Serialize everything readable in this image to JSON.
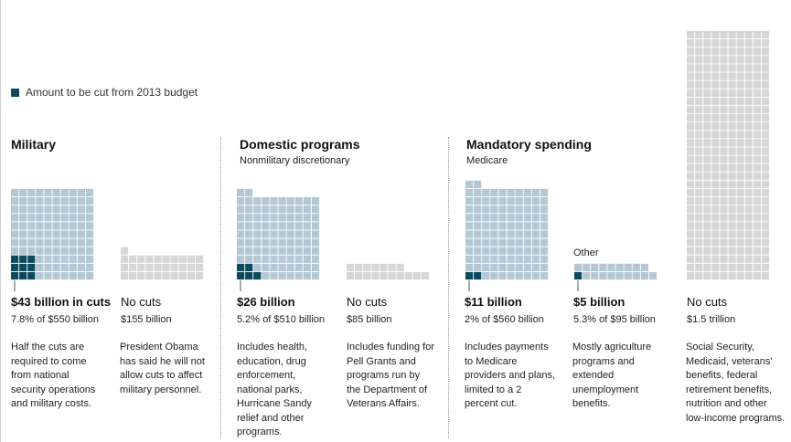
{
  "legend": {
    "label": "Amount to be cut from 2013 budget",
    "swatch_color": "#0d4a5e"
  },
  "colors": {
    "cut": "#0d4a5e",
    "budget": "#b4c8d4",
    "no_cut": "#d6d6d6",
    "cell_border": "#ffffff"
  },
  "sections": {
    "military": {
      "title": "Military"
    },
    "domestic": {
      "title": "Domestic programs",
      "subtitle": "Nonmilitary discretionary"
    },
    "mandatory": {
      "title": "Mandatory spending",
      "subtitle": "Medicare"
    }
  },
  "items": {
    "military_cut": {
      "amount": "$43 billion in cuts",
      "pct": "7.8% of $550 billion",
      "desc": [
        "Half the cuts are",
        "required to come",
        "from national",
        "security operations",
        "and military costs."
      ]
    },
    "military_nocut": {
      "amount": "No cuts",
      "pct": "$155 billion",
      "desc": [
        "President Obama",
        "has said he will not",
        "allow cuts to affect",
        "military personnel."
      ]
    },
    "domestic_cut": {
      "amount": "$26 billion",
      "pct": "5.2% of $510 billion",
      "desc": [
        "Includes health,",
        "education, drug",
        "enforcement,",
        "national parks,",
        "Hurricane Sandy",
        "relief and other",
        "programs."
      ]
    },
    "domestic_nocut": {
      "amount": "No cuts",
      "pct": "$85 billion",
      "desc": [
        "Includes funding for",
        "Pell Grants and",
        "programs run by",
        "the Department of",
        "Veterans Affairs."
      ]
    },
    "medicare": {
      "amount": "$11 billion",
      "pct": "2% of $560 billion",
      "desc": [
        "Includes payments",
        "to Medicare",
        "providers and plans,",
        "limited to a 2",
        "percent cut."
      ]
    },
    "other": {
      "label": "Other",
      "amount": "$5 billion",
      "pct": "5.3% of $95 billion",
      "desc": [
        "Mostly agriculture",
        "programs and",
        "extended",
        "unemployment",
        "benefits."
      ]
    },
    "social": {
      "amount": "No cuts",
      "pct": "$1.5 trillion",
      "desc": [
        "Social Security,",
        "Medicaid, veterans'",
        "benefits, federal",
        "retirement benefits,",
        "nutrition and other",
        "low-income programs."
      ]
    }
  },
  "chart_data": {
    "type": "waffle",
    "unit_billion_per_square": 5,
    "legend": "Amount to be cut from 2013 budget",
    "groups": [
      {
        "key": "military_cut",
        "total_billion": 550,
        "cut_billion": 43,
        "kind": "budget"
      },
      {
        "key": "military_nocut",
        "total_billion": 155,
        "cut_billion": 0,
        "kind": "no_cut"
      },
      {
        "key": "domestic_cut",
        "total_billion": 510,
        "cut_billion": 26,
        "kind": "budget"
      },
      {
        "key": "domestic_nocut",
        "total_billion": 85,
        "cut_billion": 0,
        "kind": "no_cut"
      },
      {
        "key": "medicare",
        "total_billion": 560,
        "cut_billion": 11,
        "kind": "budget"
      },
      {
        "key": "other",
        "total_billion": 95,
        "cut_billion": 5,
        "kind": "budget"
      },
      {
        "key": "social",
        "total_billion": 1500,
        "cut_billion": 0,
        "kind": "no_cut"
      }
    ]
  }
}
